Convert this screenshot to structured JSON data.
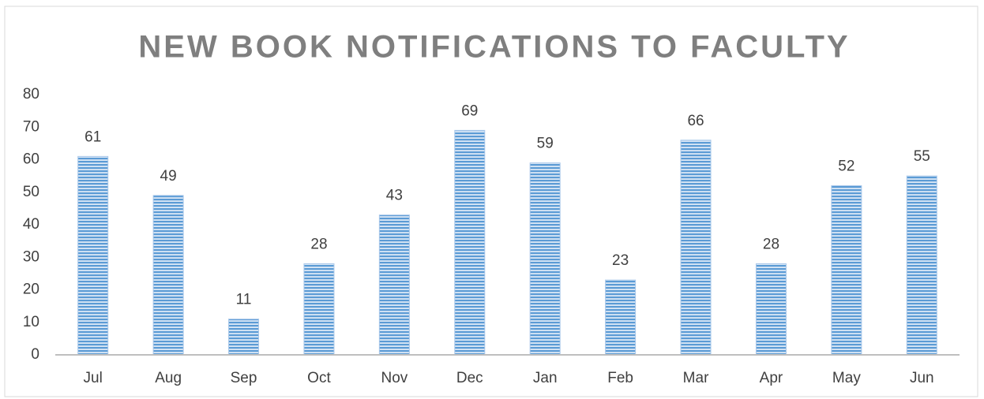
{
  "chart_data": {
    "type": "bar",
    "title": "NEW BOOK NOTIFICATIONS TO FACULTY",
    "categories": [
      "Jul",
      "Aug",
      "Sep",
      "Oct",
      "Nov",
      "Dec",
      "Jan",
      "Feb",
      "Mar",
      "Apr",
      "May",
      "Jun"
    ],
    "values": [
      61,
      49,
      11,
      28,
      43,
      69,
      59,
      23,
      66,
      28,
      52,
      55
    ],
    "color": "#5b9bd5",
    "ylim": [
      0,
      80
    ],
    "yticks": [
      0,
      10,
      20,
      30,
      40,
      50,
      60,
      70,
      80
    ],
    "grid": false
  }
}
